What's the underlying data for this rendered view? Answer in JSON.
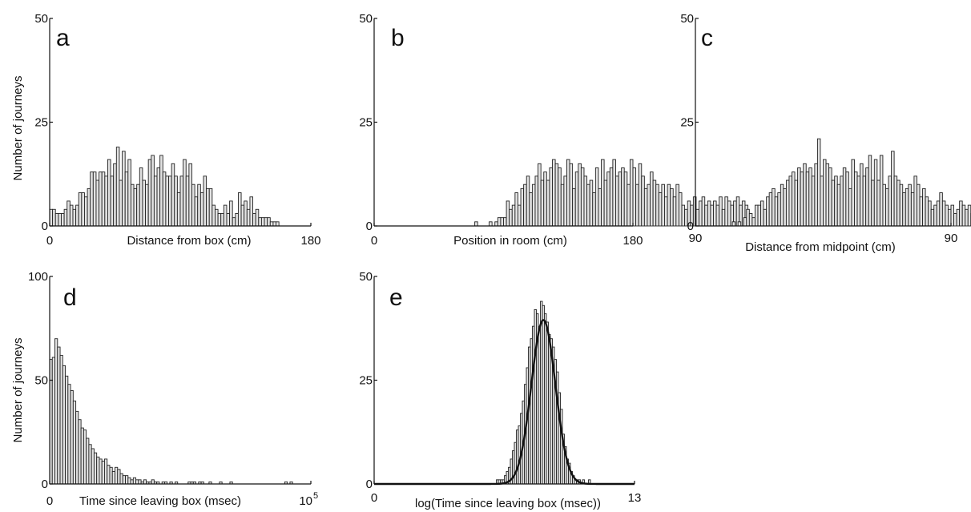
{
  "figure": {
    "ylabel_top": "Number of journeys",
    "ylabel_bottom": "Number of journeys"
  },
  "chart_data": [
    {
      "type": "bar",
      "panel": "a",
      "xlabel": "Distance from box (cm)",
      "x_tick_labels": [
        "0",
        "180"
      ],
      "y_tick_labels": [
        "0",
        "25",
        "50"
      ],
      "xlim": [
        0,
        180
      ],
      "ylim": [
        0,
        50
      ],
      "bin_width": 2,
      "values": [
        4,
        4,
        3,
        3,
        3,
        4,
        6,
        5,
        4,
        5,
        8,
        8,
        7,
        9,
        13,
        13,
        11,
        13,
        13,
        12,
        16,
        12,
        15,
        19,
        11,
        18,
        13,
        16,
        10,
        9,
        10,
        14,
        11,
        10,
        16,
        17,
        12,
        14,
        17,
        13,
        12,
        12,
        15,
        12,
        8,
        12,
        16,
        12,
        15,
        10,
        7,
        10,
        8,
        12,
        9,
        9,
        5,
        4,
        3,
        3,
        5,
        3,
        6,
        2,
        3,
        8,
        5,
        6,
        4,
        7,
        3,
        4,
        2,
        2,
        2,
        2,
        1,
        1,
        1,
        0,
        0,
        0,
        0,
        0,
        0,
        0,
        0,
        0,
        0,
        0
      ]
    },
    {
      "type": "bar",
      "panel": "b",
      "xlabel": "Position in room (cm)",
      "x_tick_labels": [
        "0",
        "180"
      ],
      "y_tick_labels": [
        "0",
        "25",
        "50"
      ],
      "xlim": [
        0,
        180
      ],
      "ylim": [
        0,
        50
      ],
      "bin_width": 2,
      "values": [
        0,
        0,
        0,
        0,
        0,
        0,
        0,
        0,
        0,
        0,
        0,
        0,
        0,
        0,
        0,
        0,
        0,
        0,
        0,
        0,
        0,
        0,
        0,
        0,
        0,
        0,
        0,
        0,
        0,
        0,
        0,
        0,
        0,
        0,
        0,
        1,
        0,
        0,
        0,
        0,
        1,
        0,
        1,
        2,
        2,
        2,
        6,
        4,
        5,
        8,
        5,
        9,
        10,
        12,
        8,
        10,
        12,
        15,
        11,
        13,
        11,
        14,
        16,
        15,
        14,
        10,
        12,
        16,
        15,
        9,
        13,
        15,
        14,
        12,
        10,
        11,
        8,
        14,
        9,
        16,
        11,
        13,
        14,
        16,
        12,
        13,
        14,
        13,
        10,
        16,
        14,
        10,
        15,
        12,
        9,
        10,
        13,
        11,
        10,
        8,
        10,
        7,
        10,
        9,
        7,
        10,
        8,
        5,
        4,
        6,
        5,
        7,
        4,
        6,
        7,
        5,
        6,
        5,
        6,
        5,
        7,
        4,
        7,
        6,
        5,
        6,
        7,
        5,
        6,
        5
      ]
    },
    {
      "type": "bar",
      "panel": "c",
      "xlabel": "Distance from midpoint (cm)",
      "x_tick_labels": [
        "90",
        "90"
      ],
      "y_tick_labels": [
        "0",
        "25",
        "50"
      ],
      "xlim": [
        -90,
        90
      ],
      "ylim": [
        0,
        50
      ],
      "bin_width": 2,
      "values": [
        0,
        0,
        0,
        0,
        0,
        0,
        0,
        0,
        0,
        0,
        0,
        0,
        0,
        1,
        0,
        1,
        0,
        2,
        4,
        3,
        2,
        5,
        5,
        6,
        4,
        7,
        8,
        9,
        7,
        8,
        10,
        9,
        11,
        12,
        13,
        11,
        14,
        13,
        15,
        13,
        14,
        12,
        15,
        21,
        12,
        16,
        15,
        14,
        11,
        12,
        10,
        12,
        14,
        13,
        9,
        16,
        13,
        12,
        15,
        12,
        14,
        17,
        11,
        16,
        11,
        17,
        10,
        9,
        12,
        18,
        12,
        11,
        10,
        8,
        9,
        10,
        8,
        12,
        10,
        7,
        9,
        7,
        6,
        4,
        5,
        6,
        8,
        6,
        5,
        4,
        5,
        3,
        4,
        6,
        5,
        4,
        5,
        3,
        5,
        4,
        3,
        2,
        3,
        1,
        1,
        2,
        0,
        1,
        0,
        0,
        0,
        0,
        0,
        0,
        0,
        0,
        0,
        0,
        0,
        0
      ]
    },
    {
      "type": "bar",
      "panel": "d",
      "xlabel": "Time since leaving box (msec)",
      "x_tick_labels": [
        "0",
        "10"
      ],
      "x_tick_exponent": "5",
      "y_tick_labels": [
        "0",
        "50",
        "100"
      ],
      "xlim": [
        0,
        100000
      ],
      "ylim": [
        0,
        100
      ],
      "bin_width": 1000,
      "values": [
        60,
        61,
        70,
        66,
        62,
        57,
        52,
        48,
        45,
        40,
        35,
        31,
        27,
        26,
        22,
        19,
        17,
        15,
        13,
        12,
        11,
        12,
        9,
        8,
        6,
        8,
        7,
        5,
        4,
        4,
        3,
        2,
        3,
        2,
        2,
        1,
        2,
        1,
        1,
        2,
        1,
        1,
        0,
        1,
        1,
        0,
        1,
        0,
        1,
        0,
        0,
        0,
        0,
        1,
        1,
        1,
        0,
        1,
        1,
        0,
        0,
        1,
        0,
        0,
        0,
        1,
        0,
        0,
        0,
        1,
        0,
        0,
        0,
        0,
        0,
        0,
        0,
        0,
        0,
        0,
        0,
        0,
        0,
        0,
        0,
        0,
        0,
        0,
        0,
        0,
        1,
        0,
        1,
        0,
        0,
        0,
        0,
        0,
        0,
        0
      ]
    },
    {
      "type": "bar",
      "panel": "e",
      "xlabel": "log(Time since leaving box (msec))",
      "x_tick_labels": [
        "0",
        "13"
      ],
      "y_tick_labels": [
        "0",
        "25",
        "50"
      ],
      "xlim": [
        0,
        13
      ],
      "ylim": [
        0,
        50
      ],
      "bin_width": 0.1,
      "bins_start": 6.0,
      "values": [
        0,
        1,
        1,
        1,
        1,
        2,
        3,
        4,
        6,
        8,
        10,
        13,
        14,
        17,
        20,
        24,
        28,
        33,
        35,
        38,
        42,
        41,
        38,
        44,
        43,
        41,
        39,
        36,
        35,
        33,
        30,
        27,
        22,
        18,
        12,
        9,
        6,
        5,
        3,
        2,
        1,
        1,
        1,
        0,
        1,
        0,
        0,
        1
      ],
      "fit": {
        "type": "gaussian",
        "mean": 8.45,
        "sd": 0.6,
        "peak": 39.5
      }
    }
  ]
}
